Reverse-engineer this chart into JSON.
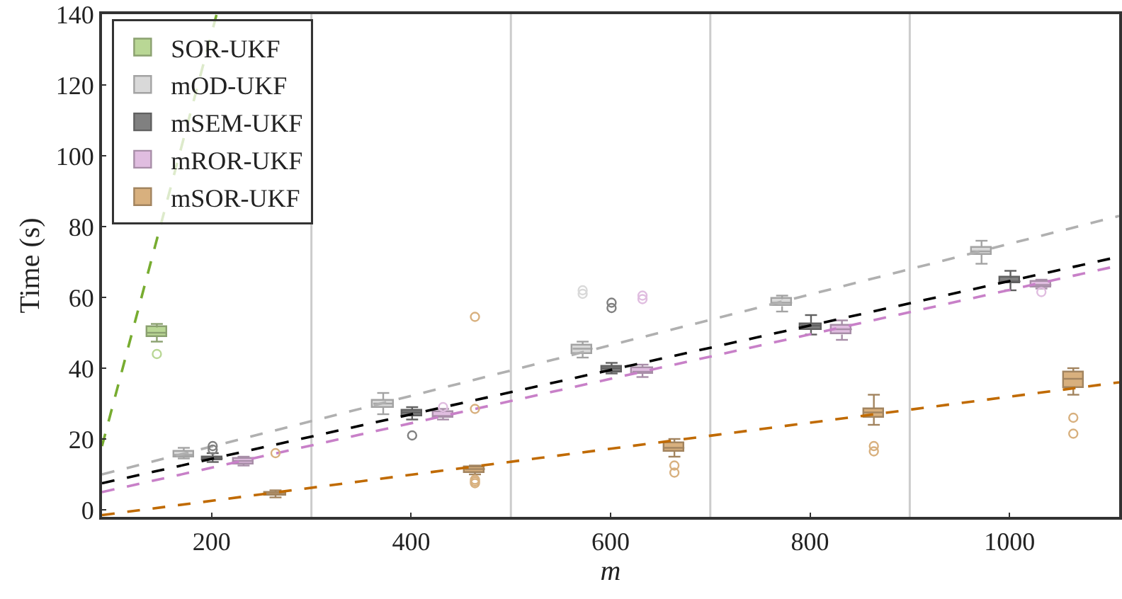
{
  "chart_data": {
    "type": "box",
    "xlabel": "m",
    "ylabel": "Time (s)",
    "xlim": [
      90,
      1110
    ],
    "ylim": [
      -2,
      140
    ],
    "xticks": [
      200,
      400,
      600,
      800,
      1000
    ],
    "yticks": [
      0,
      20,
      40,
      60,
      80,
      100,
      120,
      140
    ],
    "legend": "top left",
    "grid": false,
    "ref_lines": [
      {
        "axis": "x",
        "value": 300,
        "color": "#cccccc"
      },
      {
        "axis": "x",
        "value": 500,
        "color": "#cccccc"
      },
      {
        "axis": "x",
        "value": 700,
        "color": "#cccccc"
      },
      {
        "axis": "x",
        "value": 900,
        "color": "#cccccc"
      }
    ],
    "series": [
      {
        "name": "SOR-UKF",
        "color": "#b9d795",
        "marker": "circle",
        "x": [
          145
        ],
        "boxes": [
          {
            "low": 47.5,
            "q1": 49,
            "median": 50,
            "q3": 51.5,
            "high": 52.5,
            "outliers": [
              44
            ]
          }
        ]
      },
      {
        "name": "mOD-UKF",
        "color": "#d9d9d9",
        "marker": "circle",
        "x": [
          172,
          372,
          572,
          772,
          972
        ],
        "boxes": [
          {
            "low": 14.5,
            "q1": 15,
            "median": 15.5,
            "q3": 16.5,
            "high": 17.5
          },
          {
            "low": 27,
            "q1": 29,
            "median": 30,
            "q3": 31,
            "high": 33
          },
          {
            "low": 43,
            "q1": 44,
            "median": 45.5,
            "q3": 46.5,
            "high": 47.5,
            "outliers": [
              61,
              62
            ]
          },
          {
            "low": 56,
            "q1": 57.5,
            "median": 58.5,
            "q3": 59.5,
            "high": 60.5
          },
          {
            "low": 69.5,
            "q1": 72,
            "median": 73,
            "q3": 74,
            "high": 76
          }
        ]
      },
      {
        "name": "mSEM-UKF",
        "color": "#808080",
        "marker": "circle",
        "x": [
          201,
          401,
          601,
          801,
          1001
        ],
        "boxes": [
          {
            "low": 13.5,
            "q1": 14,
            "median": 14.5,
            "q3": 15,
            "high": 16,
            "outliers": [
              17,
              18
            ]
          },
          {
            "low": 25.5,
            "q1": 26.5,
            "median": 27.5,
            "q3": 28,
            "high": 29,
            "outliers": [
              21
            ]
          },
          {
            "low": 38.5,
            "q1": 39,
            "median": 40,
            "q3": 40.5,
            "high": 41.5,
            "outliers": [
              57,
              58.5
            ]
          },
          {
            "low": 49.5,
            "q1": 51,
            "median": 52,
            "q3": 52.5,
            "high": 55
          },
          {
            "low": 62,
            "q1": 64,
            "median": 64.5,
            "q3": 65.5,
            "high": 67.5
          }
        ]
      },
      {
        "name": "mROR-UKF",
        "color": "#e0bde0",
        "marker": "circle",
        "x": [
          232,
          432,
          632,
          832,
          1032
        ],
        "boxes": [
          {
            "low": 12.5,
            "q1": 13,
            "median": 13.8,
            "q3": 14.5,
            "high": 15
          },
          {
            "low": 25.5,
            "q1": 26,
            "median": 26.5,
            "q3": 27.5,
            "high": 28.5,
            "outliers": [
              29
            ]
          },
          {
            "low": 37.5,
            "q1": 38.5,
            "median": 39,
            "q3": 40,
            "high": 41,
            "outliers": [
              59.5,
              60.5
            ]
          },
          {
            "low": 48,
            "q1": 49.5,
            "median": 51,
            "q3": 52,
            "high": 53.5
          },
          {
            "low": 62.5,
            "q1": 63,
            "median": 63.5,
            "q3": 64.5,
            "high": 65,
            "outliers": [
              61.5
            ]
          }
        ]
      },
      {
        "name": "mSOR-UKF",
        "color": "#d8b07e",
        "marker": "circle",
        "x": [
          264,
          464,
          664,
          864,
          1064
        ],
        "boxes": [
          {
            "low": 3.5,
            "q1": 4,
            "median": 4.5,
            "q3": 5,
            "high": 5.5,
            "outliers": [
              16
            ]
          },
          {
            "low": 10,
            "q1": 10.5,
            "median": 11.5,
            "q3": 12,
            "high": 12.5,
            "outliers": [
              54.5,
              28.5,
              8.5,
              8,
              7.5
            ]
          },
          {
            "low": 15,
            "q1": 16.5,
            "median": 17.5,
            "q3": 19,
            "high": 20,
            "outliers": [
              12.5,
              10.5
            ]
          },
          {
            "low": 24,
            "q1": 26,
            "median": 27.5,
            "q3": 28.5,
            "high": 32.5,
            "outliers": [
              18,
              16.5
            ]
          },
          {
            "low": 32.5,
            "q1": 34.5,
            "median": 37,
            "q3": 39,
            "high": 40,
            "outliers": [
              26,
              21.5
            ]
          }
        ]
      },
      {
        "type": "line",
        "color": "#77ac30",
        "line_style": "dashed",
        "x": [
          90,
          205
        ],
        "values": [
          18,
          140
        ]
      },
      {
        "type": "line",
        "color": "#b0b0b0",
        "line_style": "dashed",
        "x": [
          90,
          1110
        ],
        "values": [
          10,
          83
        ]
      },
      {
        "type": "line",
        "color": "#000000",
        "line_style": "dashed",
        "x": [
          90,
          1110
        ],
        "values": [
          7.5,
          71.5
        ]
      },
      {
        "type": "line",
        "color": "#c880c8",
        "line_style": "dashed",
        "x": [
          90,
          1110
        ],
        "values": [
          5,
          69
        ]
      },
      {
        "type": "line",
        "color": "#c06a00",
        "line_style": "dashed",
        "x": [
          90,
          1110
        ],
        "values": [
          -1.5,
          36
        ]
      }
    ]
  }
}
